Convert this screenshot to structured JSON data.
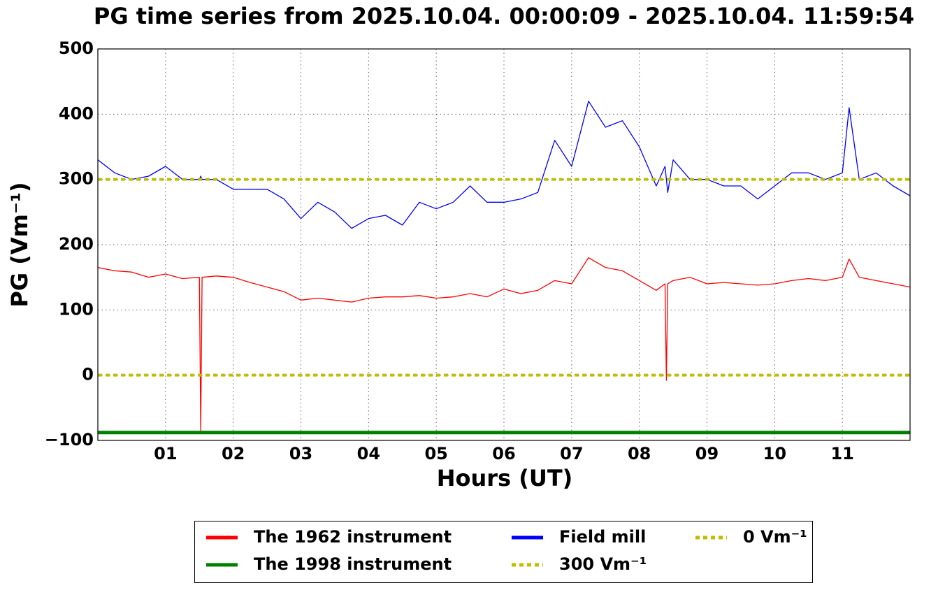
{
  "chart_data": {
    "type": "line",
    "title": "PG time series from 2025.10.04. 00:00:09 - 2025.10.04. 11:59:54",
    "x_label": "Hours (UT)",
    "y_label": "PG (Vm⁻¹)",
    "x": [
      0,
      0.25,
      0.5,
      0.75,
      1,
      1.25,
      1.5,
      1.52,
      1.54,
      1.75,
      2,
      2.25,
      2.5,
      2.75,
      3,
      3.25,
      3.5,
      3.75,
      4,
      4.25,
      4.5,
      4.75,
      5,
      5.25,
      5.5,
      5.75,
      6,
      6.25,
      6.5,
      6.75,
      7,
      7.25,
      7.5,
      7.75,
      8,
      8.25,
      8.38,
      8.4,
      8.42,
      8.5,
      8.75,
      9,
      9.25,
      9.5,
      9.75,
      10,
      10.25,
      10.5,
      10.75,
      11,
      11.1,
      11.25,
      11.5,
      11.75,
      12
    ],
    "series": [
      {
        "name": "The 1962 instrument",
        "color": "#ff0000",
        "width": 1.3,
        "values": [
          165,
          160,
          158,
          150,
          155,
          148,
          150,
          -85,
          150,
          152,
          150,
          142,
          135,
          128,
          115,
          118,
          115,
          112,
          118,
          120,
          120,
          122,
          118,
          120,
          125,
          120,
          132,
          125,
          130,
          145,
          140,
          180,
          165,
          160,
          145,
          130,
          140,
          -8,
          140,
          145,
          150,
          140,
          142,
          140,
          138,
          140,
          145,
          148,
          145,
          150,
          178,
          150,
          145,
          140,
          135
        ]
      },
      {
        "name": "The 1998 instrument",
        "color": "#008000",
        "width": 5,
        "x": [
          0,
          12
        ],
        "values": [
          -88,
          -88
        ]
      },
      {
        "name": "Field mill",
        "color": "#0000ff",
        "width": 1.3,
        "values": [
          330,
          310,
          300,
          305,
          320,
          300,
          300,
          305,
          300,
          300,
          285,
          285,
          285,
          270,
          240,
          265,
          250,
          225,
          240,
          245,
          230,
          265,
          255,
          265,
          290,
          265,
          265,
          270,
          280,
          360,
          320,
          420,
          380,
          390,
          350,
          290,
          320,
          300,
          280,
          330,
          300,
          300,
          290,
          290,
          270,
          290,
          310,
          310,
          300,
          310,
          410,
          300,
          310,
          290,
          275
        ]
      },
      {
        "name": "300 Vm⁻¹",
        "color": "#bfbf00",
        "width": 4,
        "dashed": true,
        "x": [
          0,
          12
        ],
        "values": [
          300,
          300
        ]
      },
      {
        "name": "0 Vm⁻¹",
        "color": "#bfbf00",
        "width": 4,
        "dashed": true,
        "x": [
          0,
          12
        ],
        "values": [
          0,
          0
        ]
      }
    ],
    "xlim": [
      0,
      12
    ],
    "xticks": [
      {
        "value": 1,
        "label": "01"
      },
      {
        "value": 2,
        "label": "02"
      },
      {
        "value": 3,
        "label": "03"
      },
      {
        "value": 4,
        "label": "04"
      },
      {
        "value": 5,
        "label": "05"
      },
      {
        "value": 6,
        "label": "06"
      },
      {
        "value": 7,
        "label": "07"
      },
      {
        "value": 8,
        "label": "08"
      },
      {
        "value": 9,
        "label": "09"
      },
      {
        "value": 10,
        "label": "10"
      },
      {
        "value": 11,
        "label": "11"
      }
    ],
    "ylim": [
      -100,
      500
    ],
    "yticks": [
      {
        "value": -100,
        "label": "−100"
      },
      0,
      100,
      200,
      300,
      400,
      500
    ],
    "grid": true,
    "legend": "below"
  }
}
